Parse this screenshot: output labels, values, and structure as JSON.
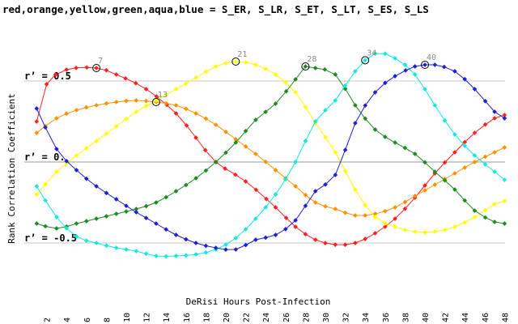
{
  "chart_data": {
    "type": "line",
    "title": "red,orange,yellow,green,aqua,blue = S_ER, S_LR, S_ET, S_LT, S_ES, S_LS",
    "xlabel": "DeRisi Hours Post-Infection",
    "ylabel": "Rank Correlation Coefficient",
    "x_ticks": [
      2,
      4,
      6,
      8,
      10,
      12,
      14,
      16,
      18,
      20,
      22,
      24,
      26,
      28,
      30,
      32,
      34,
      36,
      38,
      40,
      42,
      44,
      46,
      48
    ],
    "xlim": [
      0,
      50
    ],
    "ylim": [
      -1.0,
      1.0
    ],
    "grid": "horizontal reference lines at r' = 0.5, 0, -0.5",
    "reference_lines": [
      {
        "value": 0.5,
        "label": "r’ = 0.5"
      },
      {
        "value": 0.0,
        "label": "r’ = 0."
      },
      {
        "value": -0.5,
        "label": "r’ = -0.5"
      }
    ],
    "series": [
      {
        "name": "S_ER",
        "color": "#ff2020",
        "peak": {
          "x": 7,
          "label": "7"
        },
        "points": [
          [
            1,
            0.25
          ],
          [
            2,
            0.48
          ],
          [
            4,
            0.57
          ],
          [
            7,
            0.58
          ],
          [
            9,
            0.54
          ],
          [
            12,
            0.45
          ],
          [
            15,
            0.3
          ],
          [
            17,
            0.15
          ],
          [
            19,
            0.0
          ],
          [
            22,
            -0.12
          ],
          [
            25,
            -0.28
          ],
          [
            27,
            -0.4
          ],
          [
            29,
            -0.48
          ],
          [
            31,
            -0.51
          ],
          [
            33,
            -0.5
          ],
          [
            35,
            -0.44
          ],
          [
            37,
            -0.35
          ],
          [
            39,
            -0.22
          ],
          [
            41,
            -0.07
          ],
          [
            43,
            0.06
          ],
          [
            45,
            0.18
          ],
          [
            47,
            0.27
          ],
          [
            48,
            0.29
          ]
        ]
      },
      {
        "name": "S_LR",
        "color": "#ff9000",
        "peak": {
          "x": 13,
          "label": "13"
        },
        "points": [
          [
            1,
            0.18
          ],
          [
            3,
            0.27
          ],
          [
            5,
            0.32
          ],
          [
            7,
            0.35
          ],
          [
            9,
            0.37
          ],
          [
            11,
            0.38
          ],
          [
            13,
            0.37
          ],
          [
            15,
            0.35
          ],
          [
            17,
            0.3
          ],
          [
            19,
            0.23
          ],
          [
            21,
            0.14
          ],
          [
            23,
            0.05
          ],
          [
            25,
            -0.05
          ],
          [
            27,
            -0.15
          ],
          [
            29,
            -0.25
          ],
          [
            31,
            -0.29
          ],
          [
            33,
            -0.33
          ],
          [
            35,
            -0.32
          ],
          [
            37,
            -0.28
          ],
          [
            39,
            -0.21
          ],
          [
            41,
            -0.14
          ],
          [
            43,
            -0.07
          ],
          [
            45,
            0.0
          ],
          [
            47,
            0.06
          ],
          [
            48,
            0.09
          ]
        ]
      },
      {
        "name": "S_ET",
        "color": "#ffff00",
        "peak": {
          "x": 21,
          "label": "21"
        },
        "points": [
          [
            1,
            -0.2
          ],
          [
            3,
            -0.06
          ],
          [
            5,
            0.04
          ],
          [
            7,
            0.13
          ],
          [
            9,
            0.22
          ],
          [
            11,
            0.31
          ],
          [
            13,
            0.38
          ],
          [
            15,
            0.45
          ],
          [
            17,
            0.52
          ],
          [
            19,
            0.59
          ],
          [
            21,
            0.62
          ],
          [
            23,
            0.6
          ],
          [
            25,
            0.54
          ],
          [
            27,
            0.43
          ],
          [
            29,
            0.24
          ],
          [
            31,
            0.06
          ],
          [
            33,
            -0.17
          ],
          [
            35,
            -0.34
          ],
          [
            37,
            -0.4
          ],
          [
            39,
            -0.43
          ],
          [
            41,
            -0.43
          ],
          [
            43,
            -0.4
          ],
          [
            45,
            -0.34
          ],
          [
            47,
            -0.26
          ],
          [
            48,
            -0.24
          ]
        ]
      },
      {
        "name": "S_LT",
        "color": "#1f8a1f",
        "peak": {
          "x": 28,
          "label": "28"
        },
        "points": [
          [
            1,
            -0.38
          ],
          [
            3,
            -0.41
          ],
          [
            5,
            -0.38
          ],
          [
            7,
            -0.35
          ],
          [
            9,
            -0.32
          ],
          [
            11,
            -0.29
          ],
          [
            13,
            -0.25
          ],
          [
            15,
            -0.18
          ],
          [
            17,
            -0.1
          ],
          [
            19,
            0.0
          ],
          [
            21,
            0.12
          ],
          [
            23,
            0.26
          ],
          [
            25,
            0.36
          ],
          [
            27,
            0.51
          ],
          [
            28,
            0.59
          ],
          [
            29,
            0.58
          ],
          [
            31,
            0.54
          ],
          [
            33,
            0.35
          ],
          [
            35,
            0.2
          ],
          [
            37,
            0.12
          ],
          [
            39,
            0.05
          ],
          [
            41,
            -0.06
          ],
          [
            43,
            -0.17
          ],
          [
            45,
            -0.3
          ],
          [
            47,
            -0.37
          ],
          [
            48,
            -0.38
          ]
        ]
      },
      {
        "name": "S_ES",
        "color": "#10e8e0",
        "peak": {
          "x": 34,
          "label": "34"
        },
        "points": [
          [
            1,
            -0.15
          ],
          [
            3,
            -0.34
          ],
          [
            5,
            -0.46
          ],
          [
            7,
            -0.5
          ],
          [
            9,
            -0.53
          ],
          [
            11,
            -0.55
          ],
          [
            13,
            -0.58
          ],
          [
            15,
            -0.58
          ],
          [
            17,
            -0.57
          ],
          [
            19,
            -0.54
          ],
          [
            21,
            -0.47
          ],
          [
            23,
            -0.35
          ],
          [
            25,
            -0.2
          ],
          [
            27,
            0.0
          ],
          [
            29,
            0.25
          ],
          [
            31,
            0.38
          ],
          [
            33,
            0.56
          ],
          [
            35,
            0.67
          ],
          [
            37,
            0.64
          ],
          [
            39,
            0.54
          ],
          [
            41,
            0.35
          ],
          [
            43,
            0.17
          ],
          [
            45,
            0.04
          ],
          [
            47,
            -0.06
          ],
          [
            48,
            -0.11
          ]
        ]
      },
      {
        "name": "S_LS",
        "color": "#2020d0",
        "peak": {
          "x": 40,
          "label": "40"
        },
        "points": [
          [
            1,
            0.33
          ],
          [
            3,
            0.08
          ],
          [
            5,
            -0.05
          ],
          [
            7,
            -0.15
          ],
          [
            9,
            -0.23
          ],
          [
            11,
            -0.31
          ],
          [
            13,
            -0.38
          ],
          [
            15,
            -0.45
          ],
          [
            17,
            -0.5
          ],
          [
            19,
            -0.53
          ],
          [
            21,
            -0.54
          ],
          [
            23,
            -0.48
          ],
          [
            25,
            -0.45
          ],
          [
            27,
            -0.36
          ],
          [
            29,
            -0.18
          ],
          [
            31,
            -0.08
          ],
          [
            33,
            0.24
          ],
          [
            35,
            0.43
          ],
          [
            37,
            0.53
          ],
          [
            39,
            0.59
          ],
          [
            40,
            0.6
          ],
          [
            41,
            0.6
          ],
          [
            43,
            0.56
          ],
          [
            45,
            0.45
          ],
          [
            47,
            0.31
          ],
          [
            48,
            0.27
          ]
        ]
      }
    ]
  }
}
